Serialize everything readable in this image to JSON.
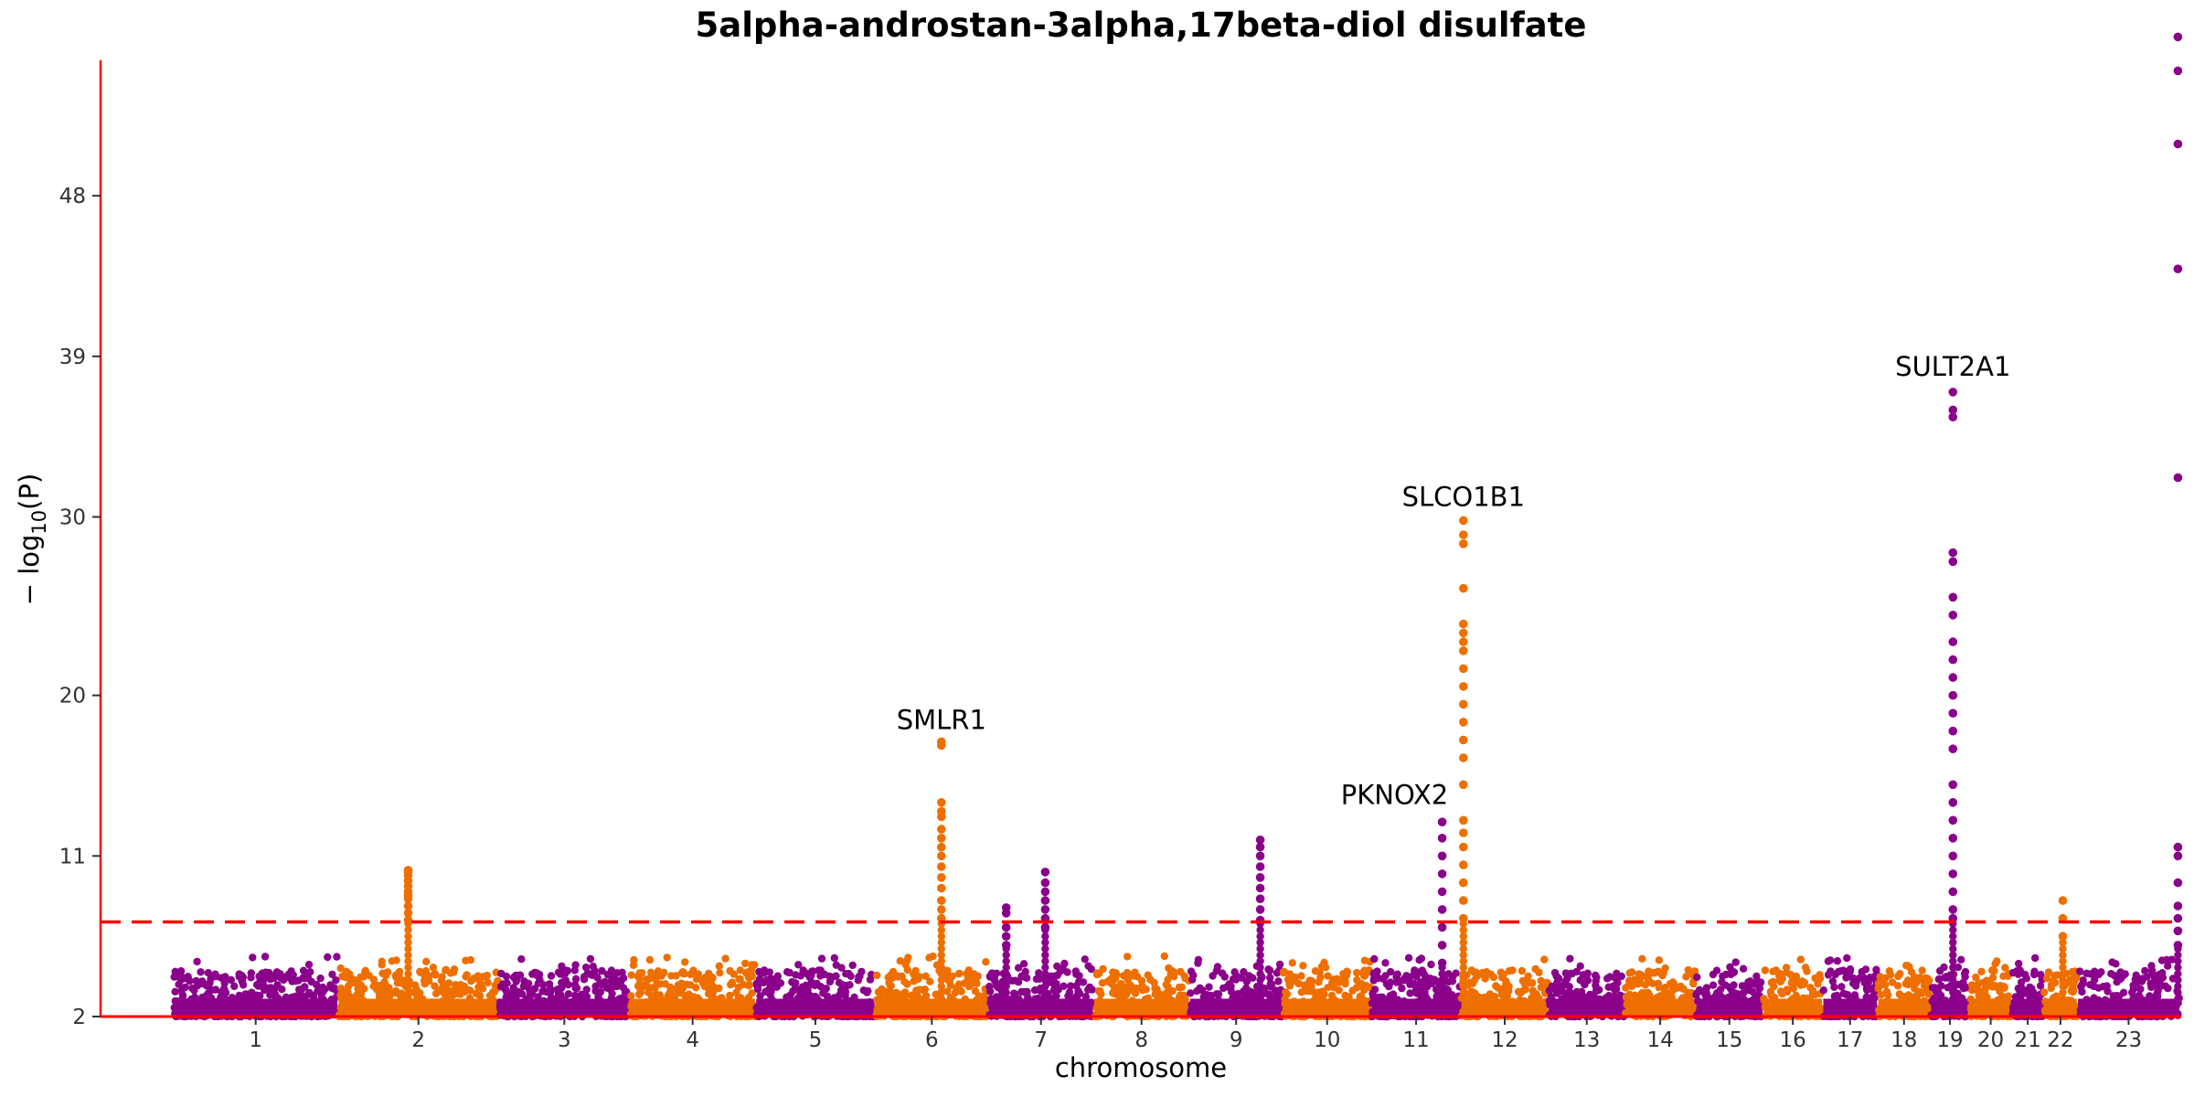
{
  "chart_data": {
    "type": "scatter",
    "title": "5alpha-androstan-3alpha,17beta-diol disulfate",
    "xlabel": "chromosome",
    "ylabel": "− log10(P)",
    "ylabel_parts": {
      "pre": "− log",
      "sub": "10",
      "post": "(P)"
    },
    "ylim": [
      2,
      56
    ],
    "yticks": [
      2,
      11,
      20,
      30,
      39,
      48
    ],
    "significance_threshold": 7.3,
    "grid": false,
    "colors": {
      "odd": "#8B008B",
      "even": "#EE6F00",
      "threshold": "#FF0000",
      "axis": "#FF0000"
    },
    "chromosomes": [
      {
        "label": "1",
        "start": 0,
        "end": 249
      },
      {
        "label": "2",
        "start": 249,
        "end": 492
      },
      {
        "label": "3",
        "start": 492,
        "end": 690
      },
      {
        "label": "4",
        "start": 690,
        "end": 880
      },
      {
        "label": "5",
        "start": 880,
        "end": 1061
      },
      {
        "label": "6",
        "start": 1061,
        "end": 1232
      },
      {
        "label": "7",
        "start": 1232,
        "end": 1391
      },
      {
        "label": "8",
        "start": 1391,
        "end": 1536
      },
      {
        "label": "9",
        "start": 1536,
        "end": 1677
      },
      {
        "label": "10",
        "start": 1677,
        "end": 1811
      },
      {
        "label": "11",
        "start": 1811,
        "end": 1946
      },
      {
        "label": "12",
        "start": 1946,
        "end": 2079
      },
      {
        "label": "13",
        "start": 2079,
        "end": 2194
      },
      {
        "label": "14",
        "start": 2194,
        "end": 2301
      },
      {
        "label": "15",
        "start": 2301,
        "end": 2403
      },
      {
        "label": "16",
        "start": 2403,
        "end": 2493
      },
      {
        "label": "17",
        "start": 2493,
        "end": 2576
      },
      {
        "label": "18",
        "start": 2576,
        "end": 2656
      },
      {
        "label": "19",
        "start": 2656,
        "end": 2715
      },
      {
        "label": "20",
        "start": 2715,
        "end": 2779
      },
      {
        "label": "21",
        "start": 2779,
        "end": 2827
      },
      {
        "label": "22",
        "start": 2827,
        "end": 2878
      },
      {
        "label": "23",
        "start": 2878,
        "end": 3033
      }
    ],
    "xlim": [
      -110,
      3035
    ],
    "peaks": [
      {
        "chr": "2",
        "pos": 355,
        "values": [
          7.4,
          7.8,
          8.2,
          8.6,
          8.8,
          9.0,
          9.3,
          9.6,
          9.9,
          10.1,
          10.2
        ]
      },
      {
        "chr": "6",
        "pos": 1161,
        "values": [
          7.5,
          8.0,
          8.5,
          9.2,
          9.8,
          10.4,
          11.0,
          11.5,
          12.0,
          12.5,
          13.2,
          13.5,
          14.0,
          17.4,
          17.2
        ]
      },
      {
        "chr": "7",
        "pos": 1259,
        "values": [
          6.0,
          6.5,
          7.0,
          7.8,
          8.1
        ]
      },
      {
        "chr": "7",
        "pos": 1318,
        "values": [
          7.0,
          7.5,
          8.0,
          8.5,
          9.0,
          9.5,
          10.1
        ]
      },
      {
        "chr": "9",
        "pos": 1643,
        "values": [
          7.4,
          8.0,
          8.6,
          9.2,
          9.8,
          10.4,
          11.0,
          11.5,
          11.9
        ]
      },
      {
        "chr": "11",
        "pos": 1918,
        "values": [
          5.0,
          6.0,
          7.0,
          8.0,
          9.0,
          10.0,
          11.0,
          12.0,
          12.9
        ]
      },
      {
        "chr": "12",
        "pos": 1950,
        "values": [
          7.5,
          8.5,
          9.5,
          10.5,
          11.5,
          12.3,
          13.0,
          15.0,
          16.5,
          17.5,
          18.5,
          19.5,
          20.5,
          21.5,
          22.5,
          23.0,
          23.5,
          24.0,
          26.0,
          28.5,
          29.0,
          29.8
        ]
      },
      {
        "chr": "19",
        "pos": 2690,
        "values": [
          7.5,
          8.0,
          9.0,
          10.0,
          11.0,
          12.0,
          13.0,
          14.0,
          15.0,
          17.0,
          18.0,
          19.0,
          20.0,
          21.0,
          22.0,
          23.0,
          24.5,
          25.5,
          27.5,
          28.0,
          35.6,
          36.0,
          37.0
        ]
      },
      {
        "chr": "22",
        "pos": 2856,
        "values": [
          6.5,
          7.5,
          8.5
        ]
      },
      {
        "chr": "23",
        "pos": 3030,
        "values": [
          6.0,
          6.8,
          7.5,
          8.2,
          9.5,
          11.0,
          11.5,
          32.2,
          43.9,
          50.9,
          55.0,
          56.9
        ]
      }
    ],
    "annotations": [
      {
        "text": "SMLR1",
        "chr": "6",
        "pos": 1161,
        "y": 17.4
      },
      {
        "text": "PKNOX2",
        "chr": "11",
        "pos": 1846,
        "y": 13.2
      },
      {
        "text": "SLCO1B1",
        "chr": "12",
        "pos": 1950,
        "y": 29.9
      },
      {
        "text": "SULT2A1",
        "chr": "19",
        "pos": 2690,
        "y": 37.2
      }
    ]
  }
}
